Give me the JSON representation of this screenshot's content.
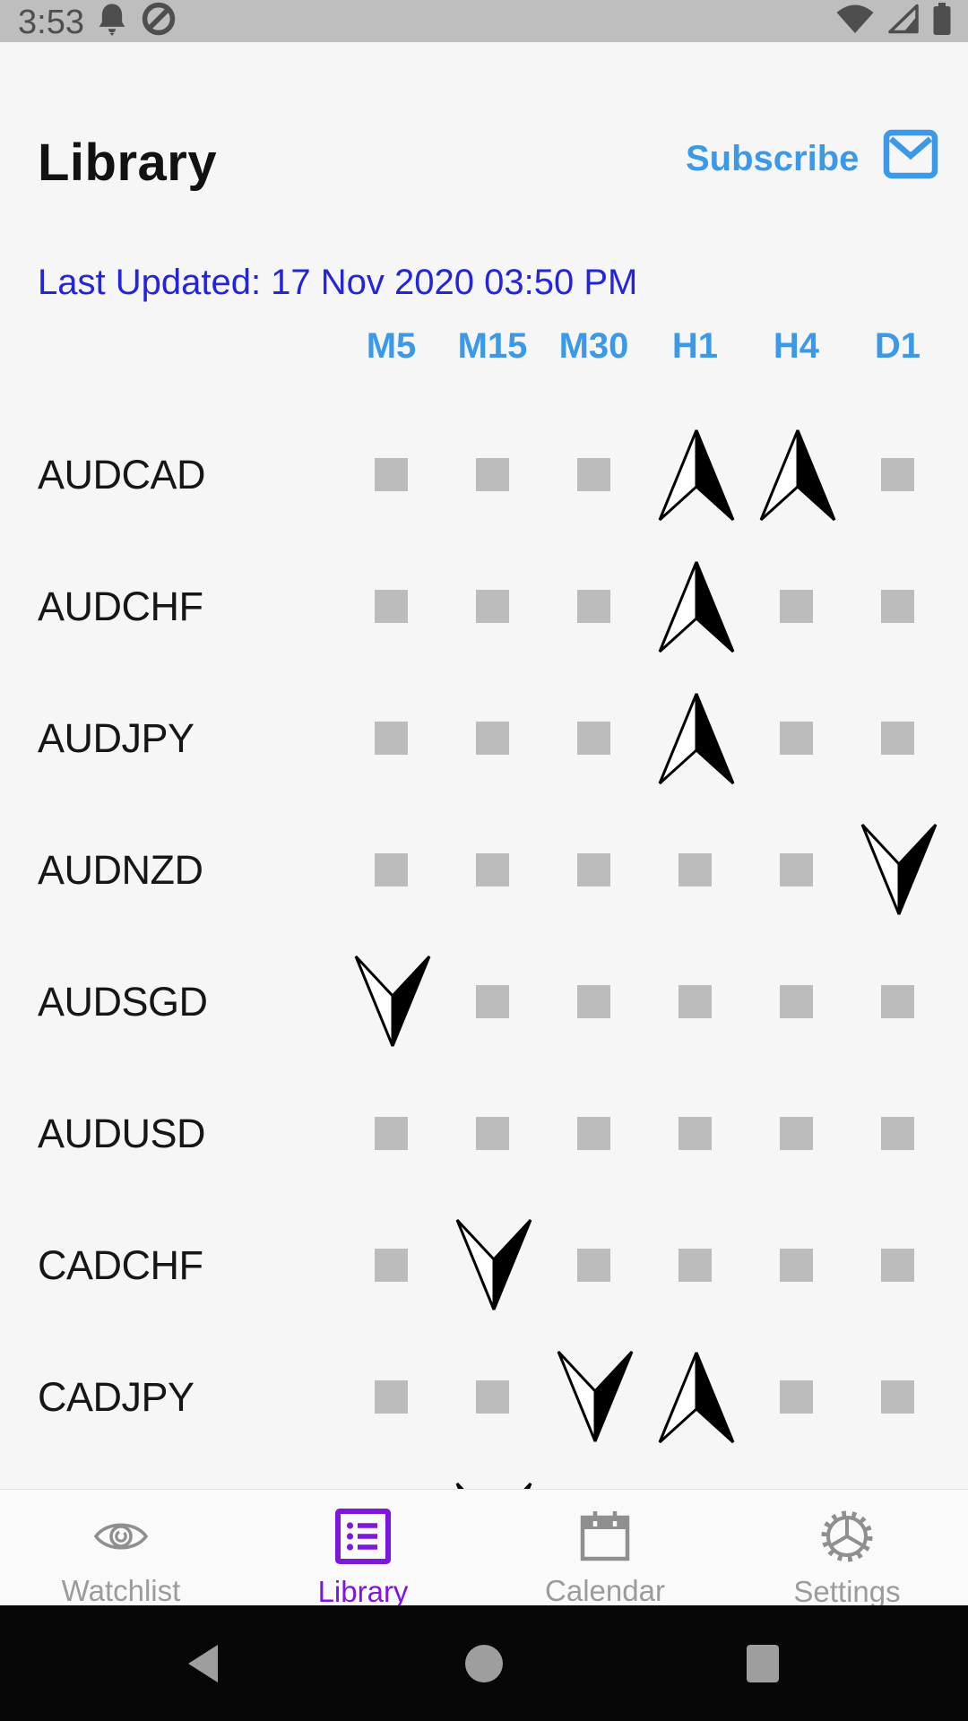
{
  "colors": {
    "accent-blue": "#3B99E8",
    "link-blue": "#2424DC",
    "active-purple": "#7E17DC",
    "square-gray": "#BCBCBC",
    "nav-gray": "#8F8F8F",
    "nav-label-gray": "#9B9B9B",
    "signal-black": "#000000",
    "status-bar-bg": "#BEBEBE"
  },
  "status_bar": {
    "time": "3:53",
    "left_icons": [
      "notification-bell-icon",
      "data-saver-icon"
    ],
    "right_icons": [
      "wifi-icon",
      "cellular-signal-icon",
      "battery-icon"
    ]
  },
  "header": {
    "title": "Library",
    "subscribe_label": "Subscribe",
    "subscribe_icon": "mail-icon"
  },
  "last_updated": "Last Updated: 17 Nov 2020 03:50 PM",
  "table": {
    "timeframes": [
      "M5",
      "M15",
      "M30",
      "H1",
      "H4",
      "D1"
    ],
    "signal_icons": {
      "up": "up-arrow-icon",
      "down": "down-arrow-icon",
      "none": "neutral-square"
    },
    "rows": [
      {
        "pair": "AUDCAD",
        "signals": [
          "none",
          "none",
          "none",
          "up",
          "up",
          "none"
        ]
      },
      {
        "pair": "AUDCHF",
        "signals": [
          "none",
          "none",
          "none",
          "up",
          "none",
          "none"
        ]
      },
      {
        "pair": "AUDJPY",
        "signals": [
          "none",
          "none",
          "none",
          "up",
          "none",
          "none"
        ]
      },
      {
        "pair": "AUDNZD",
        "signals": [
          "none",
          "none",
          "none",
          "none",
          "none",
          "down"
        ]
      },
      {
        "pair": "AUDSGD",
        "signals": [
          "down",
          "none",
          "none",
          "none",
          "none",
          "none"
        ]
      },
      {
        "pair": "AUDUSD",
        "signals": [
          "none",
          "none",
          "none",
          "none",
          "none",
          "none"
        ]
      },
      {
        "pair": "CADCHF",
        "signals": [
          "none",
          "down",
          "none",
          "none",
          "none",
          "none"
        ]
      },
      {
        "pair": "CADJPY",
        "signals": [
          "none",
          "none",
          "down",
          "up",
          "none",
          "none"
        ]
      },
      {
        "pair": "",
        "partial": true,
        "signals": [
          "none",
          "down",
          "none",
          "none",
          "none",
          "none"
        ]
      }
    ]
  },
  "bottom_nav": {
    "items": [
      {
        "label": "Watchlist",
        "icon": "eye",
        "active": false
      },
      {
        "label": "Library",
        "icon": "list",
        "active": true
      },
      {
        "label": "Calendar",
        "icon": "calendar",
        "active": false
      },
      {
        "label": "Settings",
        "icon": "gear",
        "active": false
      }
    ]
  },
  "android_nav": {
    "buttons": [
      "back",
      "home",
      "recents"
    ]
  }
}
